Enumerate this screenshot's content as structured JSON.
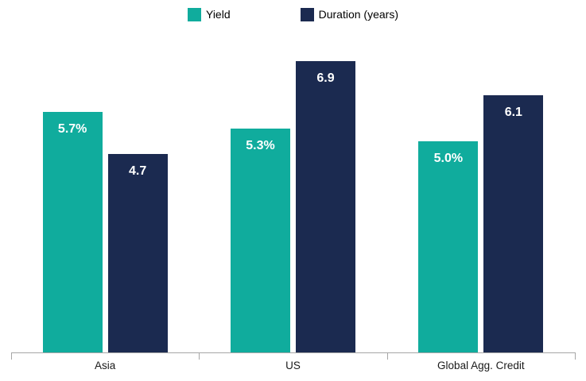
{
  "chart_data": {
    "type": "bar",
    "categories": [
      "Asia",
      "US",
      "Global Agg. Credit"
    ],
    "series": [
      {
        "name": "Yield",
        "color": "#10ac9d",
        "values": [
          5.7,
          5.3,
          5.0
        ],
        "labels": [
          "5.7%",
          "5.3%",
          "5.0%"
        ]
      },
      {
        "name": "Duration (years)",
        "color": "#1b2a50",
        "values": [
          4.7,
          6.9,
          6.1
        ],
        "labels": [
          "4.7",
          "6.9",
          "6.1"
        ]
      }
    ],
    "title": "",
    "xlabel": "",
    "ylabel": "",
    "ylim": [
      0,
      8.35
    ],
    "grid": false,
    "legend_position": "top-center",
    "value_labels": "inside-top",
    "axis_color": "#a6a6a6",
    "category_label_color": "#1a1a1a",
    "value_label_color": "#ffffff"
  }
}
